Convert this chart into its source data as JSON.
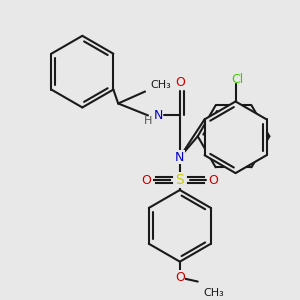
{
  "background_color": "#e8e8e8",
  "bond_color": "#1a1a1a",
  "bond_width": 1.5,
  "fig_width": 3.0,
  "fig_height": 3.0,
  "dpi": 100,
  "colors": {
    "N": "#0000cc",
    "O": "#cc0000",
    "S": "#cccc00",
    "Cl": "#44cc00",
    "C": "#1a1a1a",
    "H": "#555555"
  }
}
